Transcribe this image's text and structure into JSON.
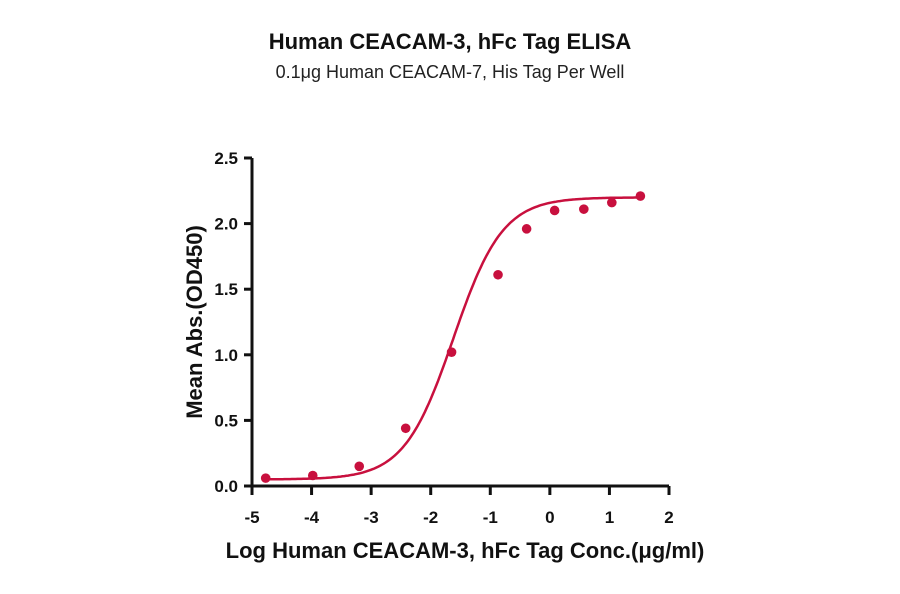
{
  "chart_data": {
    "type": "scatter",
    "title": "Human CEACAM-3, hFc Tag ELISA",
    "subtitle": "0.1μg Human CEACAM-7, His Tag Per Well",
    "xlabel": "Log Human CEACAM-3, hFc Tag Conc.(μg/ml)",
    "ylabel": "Mean Abs.(OD450)",
    "xlim": [
      -5,
      2
    ],
    "ylim": [
      0,
      2.5
    ],
    "xticks": [
      "-5",
      "-4",
      "-3",
      "-2",
      "-1",
      "0",
      "1",
      "2"
    ],
    "yticks": [
      "0.0",
      "0.5",
      "1.0",
      "1.5",
      "2.0",
      "2.5"
    ],
    "grid": false,
    "legend": null,
    "series": [
      {
        "name": "Human CEACAM-3, hFc Tag",
        "color": "#c8103e",
        "fit": "4-parameter logistic curve",
        "x": [
          -4.77,
          -3.98,
          -3.2,
          -2.42,
          -1.65,
          -0.87,
          -0.39,
          0.08,
          0.57,
          1.04,
          1.52
        ],
        "y": [
          0.06,
          0.08,
          0.15,
          0.44,
          1.02,
          1.61,
          1.96,
          2.1,
          2.11,
          2.16,
          2.21
        ]
      }
    ]
  }
}
